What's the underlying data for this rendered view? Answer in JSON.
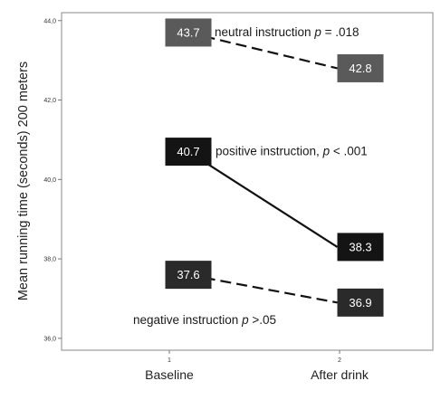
{
  "chart_data": {
    "type": "line",
    "title": "",
    "xlabel": "",
    "ylabel": "Mean running time (seconds) 200 meters",
    "x_ticks": [
      "1",
      "2"
    ],
    "categories": [
      "Baseline",
      "After drink"
    ],
    "ylim": [
      35.7,
      44.2
    ],
    "y_ticks": [
      "36,0",
      "38,0",
      "40,0",
      "42,0",
      "44,0"
    ],
    "y_tick_values": [
      36,
      38,
      40,
      42,
      44
    ],
    "grid": false,
    "series": [
      {
        "values": [
          43.7,
          42.8
        ],
        "value_labels": [
          "43.7",
          "42.8"
        ],
        "annotation": {
          "text": "neutral instruction",
          "italic": "p",
          "suffix": " = .018"
        },
        "line_style": "dashed",
        "box_color": "#5a5a5a"
      },
      {
        "values": [
          40.7,
          38.3
        ],
        "value_labels": [
          "40.7",
          "38.3"
        ],
        "annotation": {
          "text": "positive instruction,",
          "italic": "p",
          "suffix": " < .001"
        },
        "line_style": "solid",
        "box_color": "#141414"
      },
      {
        "values": [
          37.6,
          36.9
        ],
        "value_labels": [
          "37.6",
          "36.9"
        ],
        "annotation": {
          "text": "negative instruction",
          "italic": "p",
          "suffix": " >.05"
        },
        "line_style": "dashed",
        "box_color": "#2a2a2a"
      }
    ]
  }
}
